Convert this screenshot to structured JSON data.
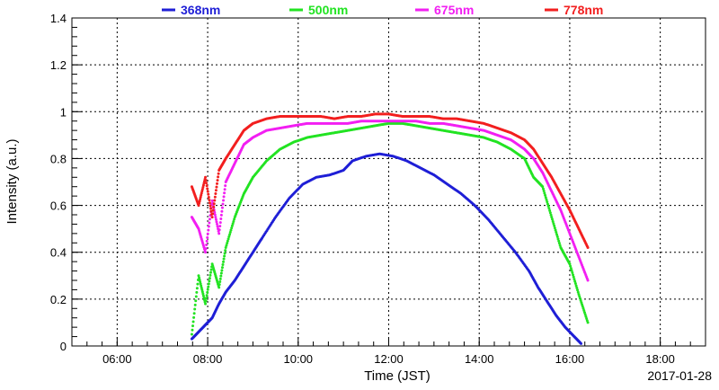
{
  "chart_data": {
    "type": "scatter",
    "xlabel": "Time (JST)",
    "ylabel": "Intensity (a.u.)",
    "date": "2017-01-28",
    "xlim": [
      5.0,
      19.0
    ],
    "ylim": [
      0,
      1.4
    ],
    "x_ticks": [
      6,
      8,
      10,
      12,
      14,
      16,
      18
    ],
    "x_tick_labels": [
      "06:00",
      "08:00",
      "10:00",
      "12:00",
      "14:00",
      "16:00",
      "18:00"
    ],
    "y_ticks": [
      0,
      0.2,
      0.4,
      0.6,
      0.8,
      1,
      1.2,
      1.4
    ],
    "y_tick_labels": [
      "0",
      "0.2",
      "0.4",
      "0.6",
      "0.8",
      "1",
      "1.2",
      "1.4"
    ],
    "grid": true,
    "legend_position": "top",
    "series": [
      {
        "name": "368nm",
        "color": "#1f1fd6",
        "x": [
          7.65,
          7.8,
          7.95,
          8.1,
          8.25,
          8.4,
          8.6,
          8.8,
          9.0,
          9.2,
          9.5,
          9.8,
          10.1,
          10.4,
          10.7,
          11.0,
          11.2,
          11.5,
          11.8,
          12.1,
          12.4,
          12.7,
          13.0,
          13.3,
          13.6,
          13.9,
          14.2,
          14.5,
          14.8,
          15.1,
          15.3,
          15.5,
          15.7,
          15.9,
          16.1,
          16.25
        ],
        "y": [
          0.03,
          0.06,
          0.09,
          0.12,
          0.18,
          0.23,
          0.28,
          0.34,
          0.4,
          0.46,
          0.55,
          0.63,
          0.69,
          0.72,
          0.73,
          0.75,
          0.79,
          0.81,
          0.82,
          0.81,
          0.79,
          0.76,
          0.73,
          0.69,
          0.65,
          0.6,
          0.54,
          0.47,
          0.4,
          0.32,
          0.25,
          0.19,
          0.13,
          0.08,
          0.04,
          0.01
        ]
      },
      {
        "name": "500nm",
        "color": "#22e322",
        "x": [
          7.65,
          7.8,
          7.95,
          8.1,
          8.25,
          8.4,
          8.6,
          8.8,
          9.0,
          9.3,
          9.6,
          9.9,
          10.2,
          10.5,
          10.8,
          11.1,
          11.4,
          11.7,
          12.0,
          12.3,
          12.6,
          12.9,
          13.2,
          13.5,
          13.8,
          14.1,
          14.4,
          14.7,
          15.0,
          15.2,
          15.4,
          15.6,
          15.8,
          16.0,
          16.2,
          16.4
        ],
        "y": [
          0.05,
          0.3,
          0.18,
          0.35,
          0.25,
          0.42,
          0.55,
          0.65,
          0.72,
          0.79,
          0.84,
          0.87,
          0.89,
          0.9,
          0.91,
          0.92,
          0.93,
          0.94,
          0.95,
          0.95,
          0.94,
          0.93,
          0.92,
          0.91,
          0.9,
          0.89,
          0.87,
          0.84,
          0.8,
          0.72,
          0.68,
          0.55,
          0.42,
          0.35,
          0.22,
          0.1
        ]
      },
      {
        "name": "675nm",
        "color": "#f21ff2",
        "x": [
          7.65,
          7.8,
          7.95,
          8.1,
          8.25,
          8.4,
          8.6,
          8.8,
          9.0,
          9.3,
          9.6,
          9.9,
          10.2,
          10.5,
          10.8,
          11.1,
          11.4,
          11.7,
          12.0,
          12.3,
          12.6,
          12.9,
          13.2,
          13.5,
          13.8,
          14.1,
          14.4,
          14.7,
          15.0,
          15.2,
          15.4,
          15.6,
          15.8,
          16.0,
          16.2,
          16.4
        ],
        "y": [
          0.55,
          0.5,
          0.4,
          0.62,
          0.48,
          0.7,
          0.78,
          0.86,
          0.89,
          0.92,
          0.93,
          0.94,
          0.95,
          0.95,
          0.95,
          0.95,
          0.96,
          0.96,
          0.96,
          0.96,
          0.96,
          0.95,
          0.95,
          0.94,
          0.93,
          0.92,
          0.9,
          0.88,
          0.84,
          0.8,
          0.74,
          0.66,
          0.58,
          0.48,
          0.38,
          0.28
        ]
      },
      {
        "name": "778nm",
        "color": "#f21f1f",
        "x": [
          7.65,
          7.8,
          7.95,
          8.1,
          8.25,
          8.4,
          8.6,
          8.8,
          9.0,
          9.3,
          9.6,
          9.9,
          10.2,
          10.5,
          10.8,
          11.1,
          11.4,
          11.7,
          12.0,
          12.3,
          12.6,
          12.9,
          13.2,
          13.5,
          13.8,
          14.1,
          14.4,
          14.7,
          15.0,
          15.2,
          15.4,
          15.6,
          15.8,
          16.0,
          16.2,
          16.4
        ],
        "y": [
          0.68,
          0.6,
          0.72,
          0.55,
          0.75,
          0.8,
          0.86,
          0.92,
          0.95,
          0.97,
          0.98,
          0.98,
          0.98,
          0.98,
          0.97,
          0.98,
          0.98,
          0.99,
          0.99,
          0.98,
          0.98,
          0.98,
          0.97,
          0.97,
          0.96,
          0.95,
          0.93,
          0.91,
          0.88,
          0.84,
          0.78,
          0.72,
          0.65,
          0.58,
          0.5,
          0.42
        ]
      }
    ]
  }
}
